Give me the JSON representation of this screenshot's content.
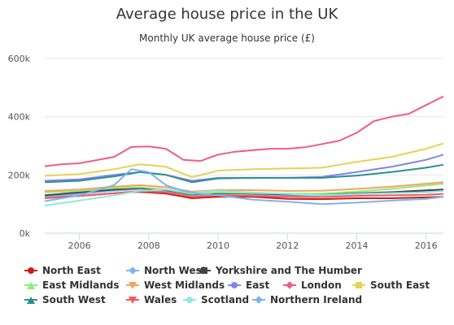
{
  "chart_data": {
    "type": "line",
    "title": "Average house price in the UK",
    "subtitle": "Monthly UK average house price (£)",
    "xlabel": "",
    "ylabel": "",
    "xlim": [
      2005.0,
      2016.5
    ],
    "ylim": [
      0,
      600000
    ],
    "y_ticks": [
      0,
      200000,
      400000,
      600000
    ],
    "y_tick_labels": [
      "0k",
      "200k",
      "400k",
      "600k"
    ],
    "x_ticks": [
      2006,
      2008,
      2010,
      2012,
      2014,
      2016
    ],
    "x_tick_labels": [
      "2006",
      "2008",
      "2010",
      "2012",
      "2014",
      "2016"
    ],
    "grid": true,
    "legend_position": "bottom",
    "series": [
      {
        "name": "North East",
        "color": "#cc1a1a",
        "marker": "circle",
        "x": [
          2005,
          2006,
          2007,
          2007.75,
          2008.5,
          2009.25,
          2010,
          2011,
          2012,
          2013,
          2014,
          2015,
          2016,
          2016.5
        ],
        "values": [
          122000,
          128000,
          137000,
          142000,
          136000,
          120000,
          125000,
          125000,
          118000,
          117000,
          120000,
          120000,
          123000,
          125000
        ]
      },
      {
        "name": "North West",
        "color": "#7cb5ec",
        "marker": "diamond",
        "x": [
          2005,
          2006,
          2007,
          2007.75,
          2008.5,
          2009.25,
          2010,
          2011,
          2012,
          2013,
          2014,
          2015,
          2016,
          2016.5
        ],
        "values": [
          125000,
          135000,
          146000,
          152000,
          145000,
          130000,
          136000,
          134000,
          130000,
          129000,
          134000,
          138000,
          146000,
          148000
        ]
      },
      {
        "name": "Yorkshire and The Humber",
        "color": "#434348",
        "marker": "square",
        "x": [
          2005,
          2006,
          2007,
          2007.75,
          2008.5,
          2009.25,
          2010,
          2011,
          2012,
          2013,
          2014,
          2015,
          2016,
          2016.5
        ],
        "values": [
          130000,
          140000,
          150000,
          155000,
          148000,
          133000,
          138000,
          136000,
          133000,
          132000,
          137000,
          141000,
          147000,
          150000
        ]
      },
      {
        "name": "East Midlands",
        "color": "#90ed7d",
        "marker": "triangle",
        "x": [
          2005,
          2006,
          2007,
          2007.75,
          2008.5,
          2009.25,
          2010,
          2011,
          2012,
          2013,
          2014,
          2015,
          2016,
          2016.5
        ],
        "values": [
          140000,
          145000,
          155000,
          158000,
          150000,
          135000,
          140000,
          138000,
          136000,
          136000,
          143000,
          152000,
          164000,
          170000
        ]
      },
      {
        "name": "West Midlands",
        "color": "#f7a35c",
        "marker": "triangle-down",
        "x": [
          2005,
          2006,
          2007,
          2007.75,
          2008.5,
          2009.25,
          2010,
          2011,
          2012,
          2013,
          2014,
          2015,
          2016,
          2016.5
        ],
        "values": [
          145000,
          150000,
          160000,
          165000,
          158000,
          143000,
          148000,
          148000,
          145000,
          146000,
          152000,
          160000,
          170000,
          175000
        ]
      },
      {
        "name": "East",
        "color": "#8085e9",
        "marker": "circle",
        "x": [
          2005,
          2006,
          2007,
          2007.75,
          2008.5,
          2009.25,
          2010,
          2011,
          2012,
          2013,
          2014,
          2015,
          2016,
          2016.5
        ],
        "values": [
          180000,
          185000,
          200000,
          210000,
          200000,
          180000,
          190000,
          190000,
          190000,
          193000,
          210000,
          228000,
          252000,
          270000
        ]
      },
      {
        "name": "London",
        "color": "#f15c80",
        "marker": "diamond",
        "x": [
          2005,
          2005.5,
          2006,
          2007,
          2007.5,
          2008,
          2008.5,
          2009.0,
          2009.5,
          2010,
          2010.5,
          2011,
          2011.5,
          2012,
          2012.5,
          2013,
          2013.5,
          2014,
          2014.5,
          2015,
          2015.5,
          2016,
          2016.5
        ],
        "values": [
          230000,
          237000,
          240000,
          262000,
          296000,
          298000,
          290000,
          252000,
          248000,
          270000,
          280000,
          285000,
          290000,
          290000,
          295000,
          306000,
          318000,
          345000,
          385000,
          400000,
          410000,
          440000,
          470000
        ]
      },
      {
        "name": "South East",
        "color": "#e4d354",
        "marker": "square",
        "x": [
          2005,
          2006,
          2007,
          2007.75,
          2008.5,
          2009.25,
          2010,
          2011,
          2012,
          2013,
          2014,
          2015,
          2016,
          2016.5
        ],
        "values": [
          197000,
          203000,
          220000,
          237000,
          228000,
          192000,
          215000,
          220000,
          222000,
          225000,
          245000,
          262000,
          290000,
          308000
        ]
      },
      {
        "name": "South West",
        "color": "#2b908f",
        "marker": "triangle",
        "x": [
          2005,
          2006,
          2007,
          2007.75,
          2008.5,
          2009.25,
          2010,
          2011,
          2012,
          2013,
          2014,
          2015,
          2016,
          2016.5
        ],
        "values": [
          175000,
          180000,
          195000,
          210000,
          200000,
          175000,
          188000,
          190000,
          190000,
          190000,
          198000,
          210000,
          225000,
          235000
        ]
      },
      {
        "name": "Wales",
        "color": "#f45b5b",
        "marker": "triangle-down",
        "x": [
          2005,
          2006,
          2007,
          2007.75,
          2008.5,
          2009.25,
          2010,
          2011,
          2012,
          2013,
          2014,
          2015,
          2016,
          2016.5
        ],
        "values": [
          120000,
          128000,
          137000,
          145000,
          140000,
          125000,
          130000,
          128000,
          125000,
          124000,
          128000,
          130000,
          132000,
          135000
        ]
      },
      {
        "name": "Scotland",
        "color": "#91e8e1",
        "marker": "circle",
        "x": [
          2005,
          2006,
          2007,
          2007.75,
          2008.5,
          2009.25,
          2010,
          2011,
          2012,
          2013,
          2014,
          2015,
          2016,
          2016.5
        ],
        "values": [
          95000,
          112000,
          130000,
          145000,
          150000,
          140000,
          145000,
          140000,
          135000,
          130000,
          135000,
          138000,
          140000,
          145000
        ]
      },
      {
        "name": "Northern Ireland",
        "color": "#7cb5ec",
        "marker": "diamond",
        "x": [
          2005,
          2006,
          2007,
          2007.5,
          2008,
          2008.5,
          2009,
          2009.5,
          2010,
          2011,
          2012,
          2013,
          2014,
          2015,
          2016,
          2016.5
        ],
        "values": [
          110000,
          130000,
          165000,
          220000,
          210000,
          165000,
          145000,
          135000,
          130000,
          115000,
          108000,
          100000,
          105000,
          112000,
          118000,
          125000
        ]
      }
    ]
  }
}
